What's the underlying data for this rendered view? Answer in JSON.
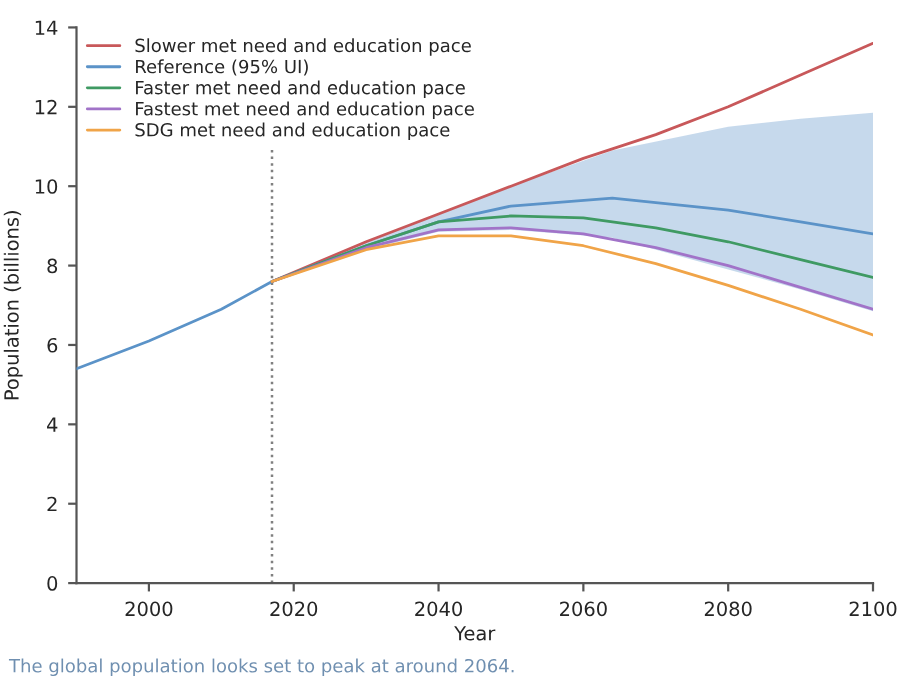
{
  "chart_data": {
    "type": "line",
    "xlabel": "Year",
    "ylabel": "Population (billions)",
    "xlim": [
      1990,
      2100
    ],
    "xticks": [
      2000,
      2020,
      2040,
      2060,
      2080,
      2100
    ],
    "ylim": [
      0,
      14
    ],
    "yticks": [
      0,
      2,
      4,
      6,
      8,
      10,
      12,
      14
    ],
    "grid": false,
    "legend": "top left",
    "line_style": "solid",
    "marker": "none",
    "ref_lines": [
      {
        "axis": "x",
        "value": 2017,
        "color": "#808080",
        "line_style": "dotted"
      }
    ],
    "annotations": [
      "The global population looks set to peak at around 2064."
    ],
    "series": [
      {
        "name": "Slower met need and education pace",
        "color": "#c8585a",
        "x": [
          2017,
          2030,
          2040,
          2050,
          2060,
          2070,
          2080,
          2090,
          2100
        ],
        "values": [
          7.6,
          8.6,
          9.3,
          10.0,
          10.7,
          11.3,
          12.0,
          12.8,
          13.6
        ]
      },
      {
        "name": "Reference (95% UI)",
        "color": "#5b93c8",
        "x": [
          1990,
          2000,
          2010,
          2017,
          2030,
          2040,
          2050,
          2064,
          2080,
          2090,
          2100
        ],
        "values": [
          5.4,
          6.1,
          6.9,
          7.6,
          8.5,
          9.1,
          9.5,
          9.7,
          9.4,
          9.1,
          8.8
        ],
        "lower": [
          null,
          null,
          null,
          7.6,
          8.4,
          8.85,
          8.9,
          8.7,
          7.9,
          7.4,
          6.85
        ],
        "upper": [
          null,
          null,
          null,
          7.6,
          8.6,
          9.3,
          10.0,
          10.9,
          11.5,
          11.7,
          11.85
        ]
      },
      {
        "name": "Faster met need and education pace",
        "color": "#3f9a63",
        "x": [
          2017,
          2030,
          2040,
          2050,
          2060,
          2070,
          2080,
          2090,
          2100
        ],
        "values": [
          7.6,
          8.5,
          9.1,
          9.25,
          9.2,
          8.95,
          8.6,
          8.15,
          7.7
        ]
      },
      {
        "name": "Fastest met need and education pace",
        "color": "#a173c8",
        "x": [
          2017,
          2030,
          2040,
          2050,
          2060,
          2070,
          2080,
          2090,
          2100
        ],
        "values": [
          7.6,
          8.45,
          8.9,
          8.95,
          8.8,
          8.45,
          8.0,
          7.45,
          6.9
        ]
      },
      {
        "name": "SDG met need and education pace",
        "color": "#f0a448",
        "x": [
          2017,
          2030,
          2040,
          2050,
          2060,
          2070,
          2080,
          2090,
          2100
        ],
        "values": [
          7.6,
          8.4,
          8.75,
          8.75,
          8.5,
          8.05,
          7.5,
          6.9,
          6.25
        ]
      }
    ]
  }
}
